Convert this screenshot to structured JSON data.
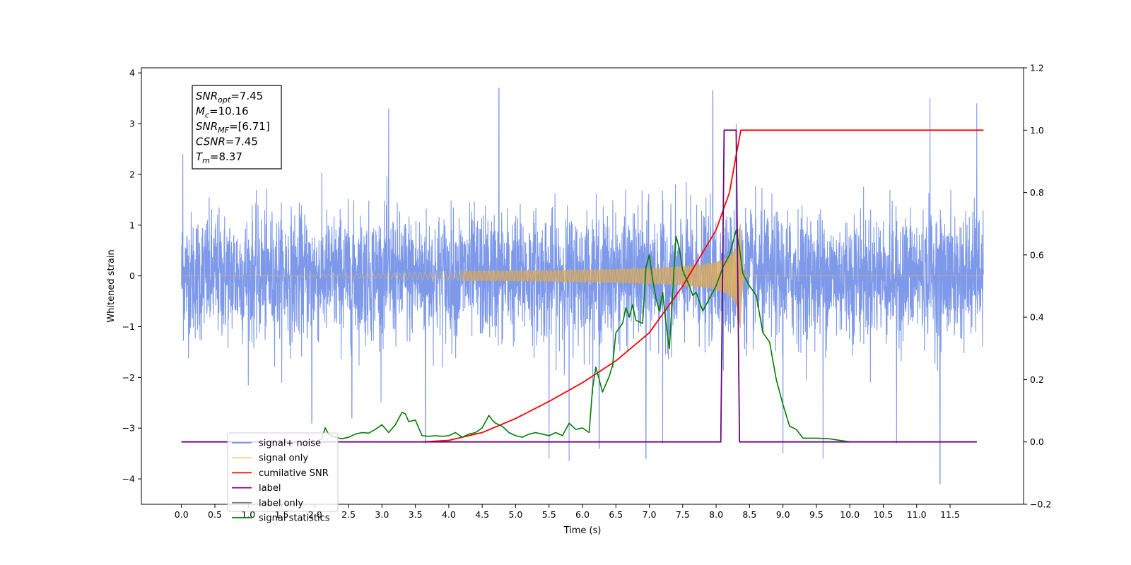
{
  "chart_data": {
    "type": "line",
    "title": "",
    "xlabel": "Time (s)",
    "ylabel": "Whitened strain",
    "xlim": [
      -0.6,
      12.6
    ],
    "ylim": [
      -4.5,
      4.1
    ],
    "y2lim": [
      -0.2,
      1.2
    ],
    "x_ticks": [
      "0.0",
      "0.5",
      "1.0",
      "1.5",
      "2.0",
      "2.5",
      "3.0",
      "3.5",
      "4.0",
      "4.5",
      "5.0",
      "5.5",
      "6.0",
      "6.5",
      "7.0",
      "7.5",
      "8.0",
      "8.5",
      "9.0",
      "9.5",
      "10.0",
      "10.5",
      "11.0",
      "11.5"
    ],
    "y_ticks": [
      "−4",
      "−3",
      "−2",
      "−1",
      "0",
      "1",
      "2",
      "3",
      "4"
    ],
    "y2_ticks": [
      "−0.2",
      "0.0",
      "0.2",
      "0.4",
      "0.6",
      "0.8",
      "1.0",
      "1.2"
    ],
    "grid": false,
    "legend_position": "lower-left",
    "annotation": {
      "lines": [
        {
          "base": "SNR",
          "sub": "opt",
          "rest": "=7.45"
        },
        {
          "base": "M",
          "sub": "c",
          "rest": "=10.16"
        },
        {
          "base": "SNR",
          "sub": "MF",
          "rest": "=[6.71]"
        },
        {
          "base": "CSNR",
          "sub": "",
          "rest": "=7.45"
        },
        {
          "base": "T",
          "sub": "m",
          "rest": "=8.37"
        }
      ]
    },
    "series": [
      {
        "name": "signal+ noise",
        "axis": "left",
        "color": "#7793e8",
        "style": "noise",
        "x_range": [
          0.0,
          12.0
        ],
        "envelope_typical": [
          -1.7,
          1.6
        ],
        "peaks": [
          [
            0.02,
            2.4
          ],
          [
            1.95,
            -2.9
          ],
          [
            2.55,
            -2.8
          ],
          [
            3.1,
            3.3
          ],
          [
            3.65,
            -3.3
          ],
          [
            4.75,
            3.7
          ],
          [
            5.5,
            -3.6
          ],
          [
            5.8,
            -3.65
          ],
          [
            6.25,
            -3.4
          ],
          [
            6.95,
            -3.6
          ],
          [
            7.2,
            -3.3
          ],
          [
            7.95,
            3.65
          ],
          [
            8.3,
            3.0
          ],
          [
            9.0,
            -3.5
          ],
          [
            9.6,
            -3.6
          ],
          [
            10.7,
            -3.3
          ],
          [
            11.2,
            3.5
          ],
          [
            11.35,
            -4.1
          ],
          [
            11.9,
            3.4
          ]
        ]
      },
      {
        "name": "signal only",
        "axis": "left",
        "color": "#f5b84a",
        "fill_color": "#c4a373",
        "style": "chirp",
        "x_range": [
          0.0,
          12.0
        ],
        "merger_time": 8.37,
        "max_amplitude": 1.05
      },
      {
        "name": "cumilative SNR",
        "axis": "right",
        "color": "#ff0000",
        "x": [
          3.6,
          4.0,
          4.5,
          5.0,
          5.5,
          6.0,
          6.5,
          7.0,
          7.5,
          8.0,
          8.2,
          8.3,
          8.37,
          8.5,
          9.0,
          10.0,
          11.0,
          12.0
        ],
        "y": [
          0.0,
          0.005,
          0.03,
          0.075,
          0.13,
          0.19,
          0.26,
          0.35,
          0.5,
          0.68,
          0.8,
          0.92,
          1.0,
          1.0,
          1.0,
          1.0,
          1.0,
          1.0
        ]
      },
      {
        "name": "label",
        "axis": "right",
        "color": "#6a0a7a",
        "x": [
          0.0,
          8.07,
          8.12,
          8.3,
          8.35,
          11.9
        ],
        "y": [
          0.0,
          0.0,
          1.0,
          1.0,
          0.0,
          0.0
        ]
      },
      {
        "name": "label only",
        "axis": "right",
        "color": "#7f7f7f",
        "x": [],
        "y": []
      },
      {
        "name": "signal statistics",
        "axis": "right",
        "color": "#007d00",
        "x": [
          0.0,
          2.0,
          2.1,
          2.15,
          2.2,
          2.3,
          2.4,
          2.5,
          2.6,
          2.7,
          2.8,
          2.9,
          3.0,
          3.1,
          3.2,
          3.3,
          3.35,
          3.4,
          3.5,
          3.6,
          3.7,
          3.8,
          3.9,
          4.0,
          4.1,
          4.2,
          4.3,
          4.4,
          4.5,
          4.6,
          4.65,
          4.7,
          4.8,
          4.9,
          5.0,
          5.1,
          5.2,
          5.3,
          5.4,
          5.5,
          5.6,
          5.7,
          5.8,
          5.9,
          6.0,
          6.1,
          6.15,
          6.2,
          6.3,
          6.4,
          6.45,
          6.5,
          6.6,
          6.65,
          6.7,
          6.75,
          6.8,
          6.9,
          6.95,
          7.0,
          7.05,
          7.1,
          7.15,
          7.2,
          7.25,
          7.3,
          7.4,
          7.45,
          7.5,
          7.6,
          7.65,
          7.7,
          7.8,
          7.9,
          8.0,
          8.1,
          8.2,
          8.25,
          8.3,
          8.35,
          8.4,
          8.5,
          8.6,
          8.7,
          8.8,
          8.9,
          9.0,
          9.1,
          9.2,
          9.3,
          9.5,
          9.7,
          10.0,
          11.0,
          11.9
        ],
        "y": [
          0.0,
          0.0,
          0.01,
          0.045,
          0.025,
          0.015,
          0.01,
          0.015,
          0.025,
          0.03,
          0.028,
          0.04,
          0.055,
          0.03,
          0.055,
          0.095,
          0.09,
          0.065,
          0.07,
          0.02,
          0.018,
          0.02,
          0.018,
          0.02,
          0.03,
          0.015,
          0.025,
          0.03,
          0.045,
          0.085,
          0.07,
          0.06,
          0.05,
          0.03,
          0.02,
          0.015,
          0.025,
          0.03,
          0.025,
          0.02,
          0.03,
          0.02,
          0.06,
          0.04,
          0.045,
          0.03,
          0.17,
          0.24,
          0.16,
          0.21,
          0.245,
          0.35,
          0.38,
          0.43,
          0.4,
          0.44,
          0.39,
          0.38,
          0.56,
          0.6,
          0.52,
          0.46,
          0.42,
          0.48,
          0.38,
          0.3,
          0.66,
          0.62,
          0.55,
          0.5,
          0.47,
          0.48,
          0.42,
          0.46,
          0.5,
          0.56,
          0.6,
          0.64,
          0.68,
          0.62,
          0.54,
          0.5,
          0.47,
          0.35,
          0.32,
          0.2,
          0.12,
          0.05,
          0.04,
          0.012,
          0.012,
          0.01,
          0.0,
          0.0,
          0.0
        ]
      }
    ]
  }
}
